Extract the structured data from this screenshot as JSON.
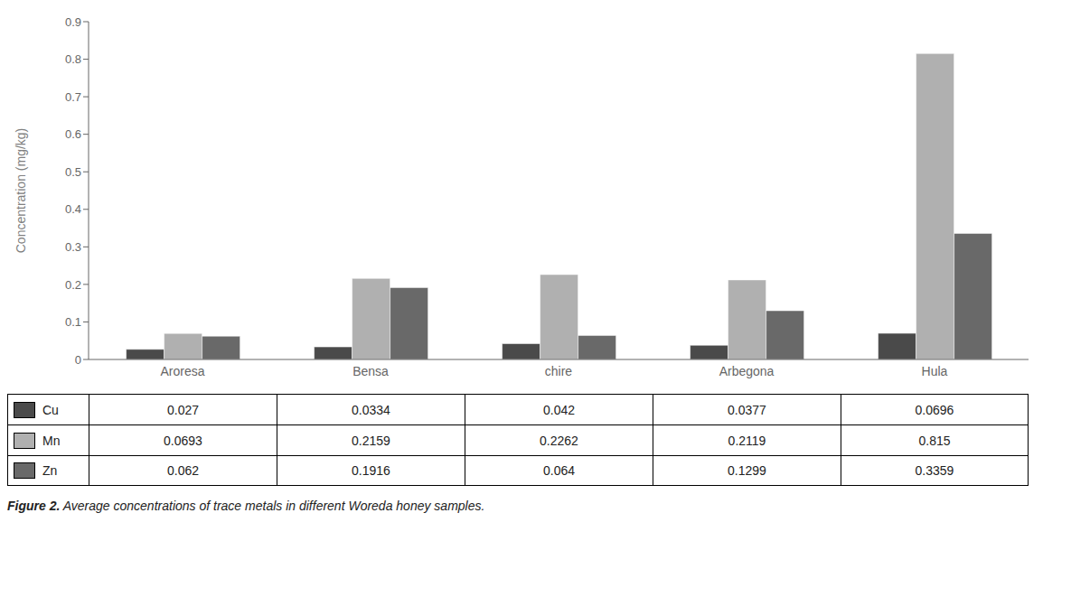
{
  "chart_data": {
    "type": "bar",
    "categories": [
      "Aroresa",
      "Bensa",
      "chire",
      "Arbegona",
      "Hula"
    ],
    "series": [
      {
        "name": "Cu",
        "color": "#4a4a4a",
        "values": [
          0.027,
          0.0334,
          0.042,
          0.0377,
          0.0696
        ]
      },
      {
        "name": "Mn",
        "color": "#b0b0b0",
        "values": [
          0.0693,
          0.2159,
          0.2262,
          0.2119,
          0.815
        ]
      },
      {
        "name": "Zn",
        "color": "#696969",
        "values": [
          0.062,
          0.1916,
          0.064,
          0.1299,
          0.3359
        ]
      }
    ],
    "ylabel": "Concentration (mg/kg)",
    "ylim": [
      0,
      0.9
    ],
    "yticks": [
      0,
      0.1,
      0.2,
      0.3,
      0.4,
      0.5,
      0.6,
      0.7,
      0.8,
      0.9
    ],
    "grid": false,
    "caption_label": "Figure 2.",
    "caption": "Average concentrations of trace metals in different Woreda honey samples."
  }
}
